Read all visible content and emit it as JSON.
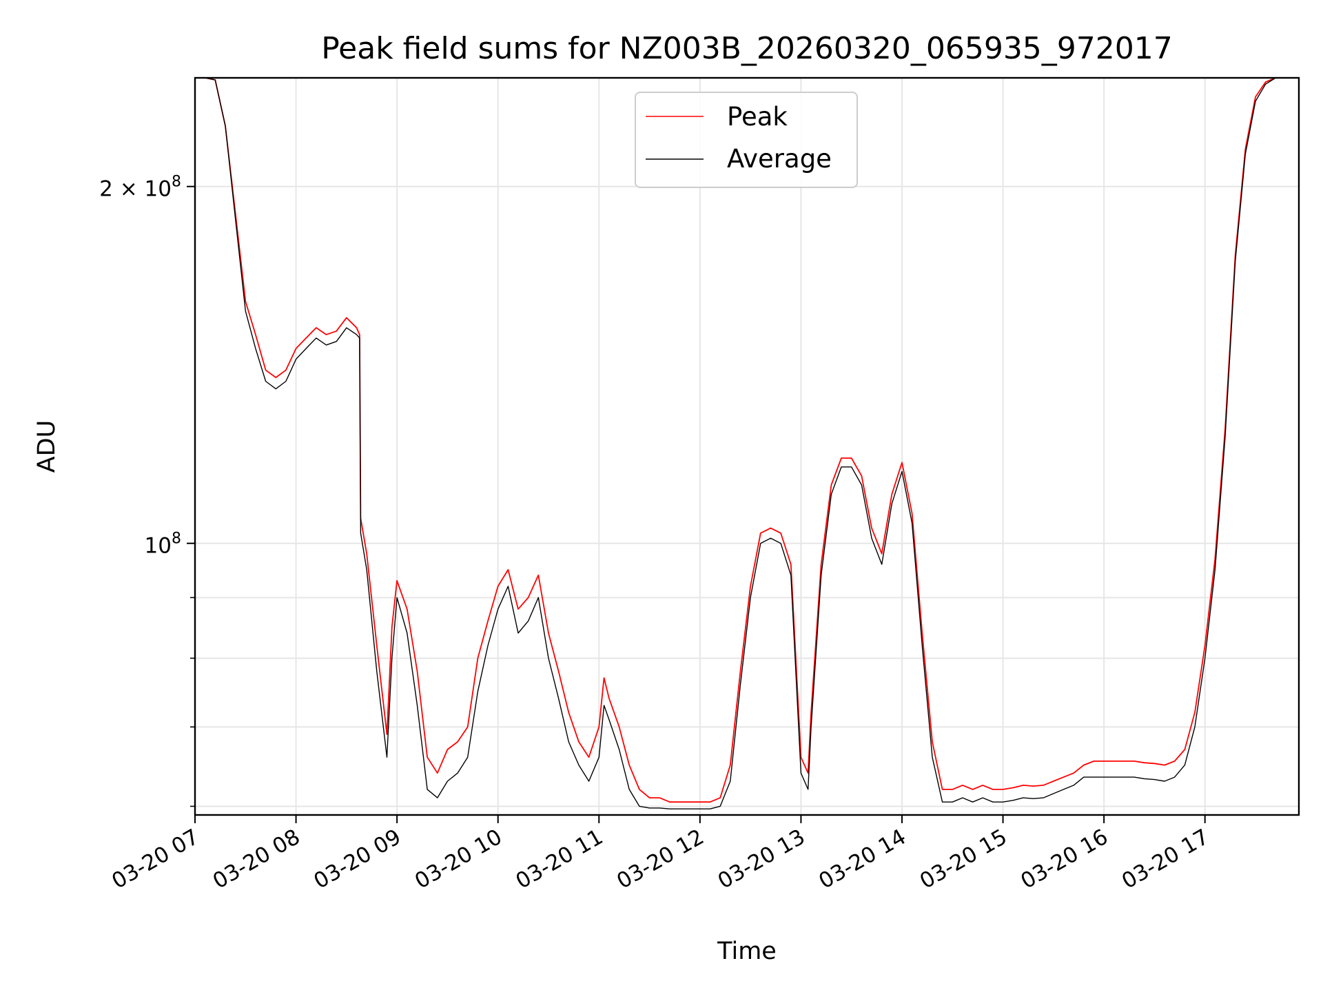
{
  "chart_data": {
    "type": "line",
    "title": "Peak field sums for NZ003B_20260320_065935_972017",
    "xlabel": "Time",
    "ylabel": "ADU",
    "yscale": "log",
    "ylim": [
      59000000,
      247000000
    ],
    "xlim": [
      7.0,
      17.93
    ],
    "x_unit": "hours",
    "grid": true,
    "legend_position": "top-center",
    "x_ticks": [
      {
        "value": 7,
        "label": "03-20 07"
      },
      {
        "value": 8,
        "label": "03-20 08"
      },
      {
        "value": 9,
        "label": "03-20 09"
      },
      {
        "value": 10,
        "label": "03-20 10"
      },
      {
        "value": 11,
        "label": "03-20 11"
      },
      {
        "value": 12,
        "label": "03-20 12"
      },
      {
        "value": 13,
        "label": "03-20 13"
      },
      {
        "value": 14,
        "label": "03-20 14"
      },
      {
        "value": 15,
        "label": "03-20 15"
      },
      {
        "value": 16,
        "label": "03-20 16"
      },
      {
        "value": 17,
        "label": "03-20 17"
      }
    ],
    "y_major_ticks": [
      {
        "value": 100000000,
        "base": "10",
        "exp": "8"
      },
      {
        "value": 200000000,
        "base": "2 × 10",
        "exp": "8"
      }
    ],
    "y_minor_ticks": [
      60000000,
      70000000,
      80000000,
      90000000
    ],
    "x": [
      7.0,
      7.1,
      7.2,
      7.3,
      7.4,
      7.5,
      7.6,
      7.7,
      7.8,
      7.9,
      8.0,
      8.1,
      8.2,
      8.3,
      8.4,
      8.5,
      8.6,
      8.63,
      8.64,
      8.7,
      8.8,
      8.9,
      8.95,
      9.0,
      9.1,
      9.2,
      9.3,
      9.4,
      9.5,
      9.6,
      9.7,
      9.8,
      9.9,
      10.0,
      10.1,
      10.2,
      10.3,
      10.4,
      10.5,
      10.6,
      10.7,
      10.8,
      10.9,
      11.0,
      11.05,
      11.1,
      11.2,
      11.3,
      11.4,
      11.5,
      11.6,
      11.7,
      11.8,
      11.9,
      12.0,
      12.1,
      12.2,
      12.3,
      12.4,
      12.5,
      12.6,
      12.7,
      12.8,
      12.9,
      13.0,
      13.07,
      13.1,
      13.2,
      13.3,
      13.4,
      13.5,
      13.6,
      13.7,
      13.8,
      13.9,
      14.0,
      14.1,
      14.2,
      14.3,
      14.4,
      14.5,
      14.6,
      14.7,
      14.8,
      14.9,
      15.0,
      15.1,
      15.2,
      15.3,
      15.4,
      15.5,
      15.6,
      15.7,
      15.8,
      15.9,
      16.0,
      16.1,
      16.2,
      16.3,
      16.4,
      16.5,
      16.6,
      16.7,
      16.8,
      16.9,
      17.0,
      17.1,
      17.2,
      17.3,
      17.4,
      17.5,
      17.6,
      17.7,
      17.8,
      17.93
    ],
    "series": [
      {
        "name": "Peak",
        "color": "#ff0000",
        "values": [
          247000000,
          247000000,
          246000000,
          225000000,
          190000000,
          160000000,
          150000000,
          140000000,
          138000000,
          140000000,
          146000000,
          149000000,
          152000000,
          150000000,
          151000000,
          155000000,
          152000000,
          150000000,
          105000000,
          98000000,
          82000000,
          69000000,
          85000000,
          93000000,
          88000000,
          78000000,
          66000000,
          64000000,
          67000000,
          68000000,
          70000000,
          80000000,
          86000000,
          92000000,
          95000000,
          88000000,
          90000000,
          94000000,
          84000000,
          78000000,
          72000000,
          68000000,
          66000000,
          70000000,
          77000000,
          74000000,
          70000000,
          65000000,
          62000000,
          61000000,
          61000000,
          60500000,
          60500000,
          60500000,
          60500000,
          60500000,
          61000000,
          65000000,
          78000000,
          92000000,
          102000000,
          103000000,
          102000000,
          96000000,
          66000000,
          64000000,
          72000000,
          96000000,
          112000000,
          118000000,
          118000000,
          114000000,
          103000000,
          98000000,
          110000000,
          117000000,
          106000000,
          84000000,
          68000000,
          62000000,
          62000000,
          62500000,
          62000000,
          62500000,
          62000000,
          62000000,
          62200000,
          62500000,
          62400000,
          62500000,
          63000000,
          63500000,
          64000000,
          65000000,
          65500000,
          65500000,
          65500000,
          65500000,
          65500000,
          65300000,
          65200000,
          65000000,
          65500000,
          67000000,
          72000000,
          82000000,
          97000000,
          125000000,
          175000000,
          215000000,
          238000000,
          245000000,
          247000000,
          247000000,
          247000000
        ]
      },
      {
        "name": "Average",
        "color": "#000000",
        "values": [
          247000000,
          247000000,
          246000000,
          225000000,
          188000000,
          157000000,
          146000000,
          137000000,
          135000000,
          137000000,
          143000000,
          146000000,
          149000000,
          147000000,
          148000000,
          152000000,
          150000000,
          149000000,
          102000000,
          95000000,
          78000000,
          66000000,
          80000000,
          90000000,
          84000000,
          73000000,
          62000000,
          61000000,
          63000000,
          64000000,
          66000000,
          75000000,
          82000000,
          88000000,
          92000000,
          84000000,
          86000000,
          90000000,
          80000000,
          74000000,
          68000000,
          65000000,
          63000000,
          66000000,
          73000000,
          71000000,
          67000000,
          62000000,
          60000000,
          59800000,
          59800000,
          59700000,
          59700000,
          59700000,
          59700000,
          59700000,
          60000000,
          63000000,
          76000000,
          90000000,
          100000000,
          101000000,
          100000000,
          94000000,
          64000000,
          62000000,
          70000000,
          94000000,
          110000000,
          116000000,
          116000000,
          112000000,
          101000000,
          96000000,
          108000000,
          115000000,
          104000000,
          82000000,
          66000000,
          60500000,
          60500000,
          61000000,
          60500000,
          61000000,
          60500000,
          60500000,
          60700000,
          61000000,
          60900000,
          61000000,
          61500000,
          62000000,
          62500000,
          63500000,
          63500000,
          63500000,
          63500000,
          63500000,
          63500000,
          63300000,
          63200000,
          63000000,
          63500000,
          65000000,
          70000000,
          80000000,
          95000000,
          123000000,
          173000000,
          213000000,
          236000000,
          244000000,
          247000000,
          247000000,
          247000000
        ]
      }
    ]
  }
}
